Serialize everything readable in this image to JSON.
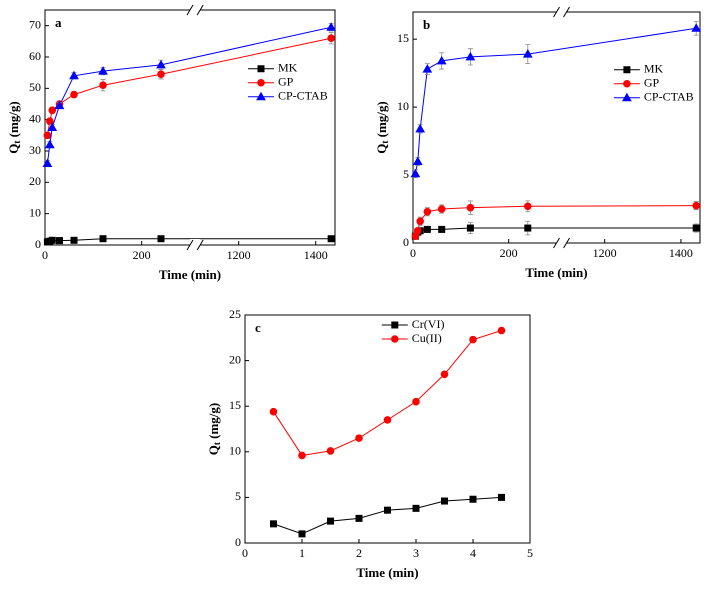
{
  "chart_data": [
    {
      "type": "line",
      "label": "a",
      "xlabel": "Time (min)",
      "ylabel": [
        "Q",
        "t",
        " (mg/g)"
      ],
      "x": [
        5,
        10,
        15,
        30,
        60,
        120,
        240,
        1440
      ],
      "xsegments": [
        [
          0,
          300
        ],
        [
          1100,
          1450
        ]
      ],
      "xticks": [
        0,
        200,
        1200,
        1400
      ],
      "ylim": [
        0,
        75
      ],
      "yticks": [
        0,
        10,
        20,
        30,
        40,
        50,
        60,
        70
      ],
      "legend": "right",
      "series": [
        {
          "name": "MK",
          "color": "#000000",
          "marker": "square",
          "values": [
            1.0,
            1.2,
            1.5,
            1.4,
            1.5,
            2.0,
            2.0,
            2.0
          ],
          "errors": [
            0.3,
            0.3,
            0.3,
            0.3,
            0.3,
            0.4,
            0.4,
            0.4
          ]
        },
        {
          "name": "GP",
          "color": "#ff0000",
          "marker": "circle",
          "values": [
            35,
            39.5,
            43,
            45,
            48,
            51,
            54.5,
            66
          ],
          "errors": [
            1,
            1,
            1,
            1,
            1,
            1.8,
            1.5,
            1.8
          ]
        },
        {
          "name": "CP-CTAB",
          "color": "#0000ff",
          "marker": "triangle",
          "values": [
            26,
            32,
            37.5,
            44.5,
            54,
            55.5,
            57.5,
            69.5
          ],
          "errors": [
            1,
            1,
            1,
            1,
            1,
            1.2,
            1.5,
            1.2
          ]
        }
      ]
    },
    {
      "type": "line",
      "label": "b",
      "xlabel": "Time (min)",
      "ylabel": [
        "Q",
        "t",
        " (mg/g)"
      ],
      "x": [
        5,
        10,
        15,
        30,
        60,
        120,
        240,
        1440
      ],
      "xsegments": [
        [
          0,
          300
        ],
        [
          1100,
          1450
        ]
      ],
      "xticks": [
        0,
        200,
        1200,
        1400
      ],
      "ylim": [
        0,
        17
      ],
      "yticks": [
        0,
        5,
        10,
        15
      ],
      "legend": "right",
      "series": [
        {
          "name": "MK",
          "color": "#000000",
          "marker": "square",
          "values": [
            0.5,
            0.8,
            0.9,
            1.0,
            1.0,
            1.1,
            1.1,
            1.1
          ],
          "errors": [
            0.2,
            0.2,
            0.2,
            0.2,
            0.2,
            0.4,
            0.5,
            0.3
          ]
        },
        {
          "name": "GP",
          "color": "#ff0000",
          "marker": "circle",
          "values": [
            0.5,
            0.9,
            1.6,
            2.3,
            2.5,
            2.6,
            2.7,
            2.75
          ],
          "errors": [
            0.2,
            0.2,
            0.3,
            0.3,
            0.3,
            0.5,
            0.4,
            0.3
          ]
        },
        {
          "name": "CP-CTAB",
          "color": "#0000ff",
          "marker": "triangle",
          "values": [
            5.1,
            6.0,
            8.4,
            12.8,
            13.4,
            13.7,
            13.9,
            15.8
          ],
          "errors": [
            0.3,
            0.3,
            0.3,
            0.4,
            0.6,
            0.6,
            0.7,
            0.5
          ]
        }
      ]
    },
    {
      "type": "line",
      "label": "c",
      "xlabel": "Time (min)",
      "ylabel": [
        "Q",
        "t",
        " (mg/g)"
      ],
      "x": [
        0.5,
        1,
        1.5,
        2,
        2.5,
        3,
        3.5,
        4,
        4.5
      ],
      "xlim": [
        0,
        5
      ],
      "xticks": [
        0,
        1,
        2,
        3,
        4,
        5
      ],
      "ylim": [
        0,
        25
      ],
      "yticks": [
        0,
        5,
        10,
        15,
        20,
        25
      ],
      "legend": "top",
      "series": [
        {
          "name": "Cr(VI)",
          "color": "#000000",
          "marker": "square",
          "values": [
            2.1,
            1.0,
            2.4,
            2.7,
            3.6,
            3.8,
            4.6,
            4.8,
            5.0
          ]
        },
        {
          "name": "Cu(II)",
          "color": "#ff0000",
          "marker": "circle",
          "values": [
            14.4,
            9.6,
            10.1,
            11.5,
            13.5,
            15.5,
            18.5,
            22.3,
            23.3
          ]
        }
      ]
    }
  ]
}
